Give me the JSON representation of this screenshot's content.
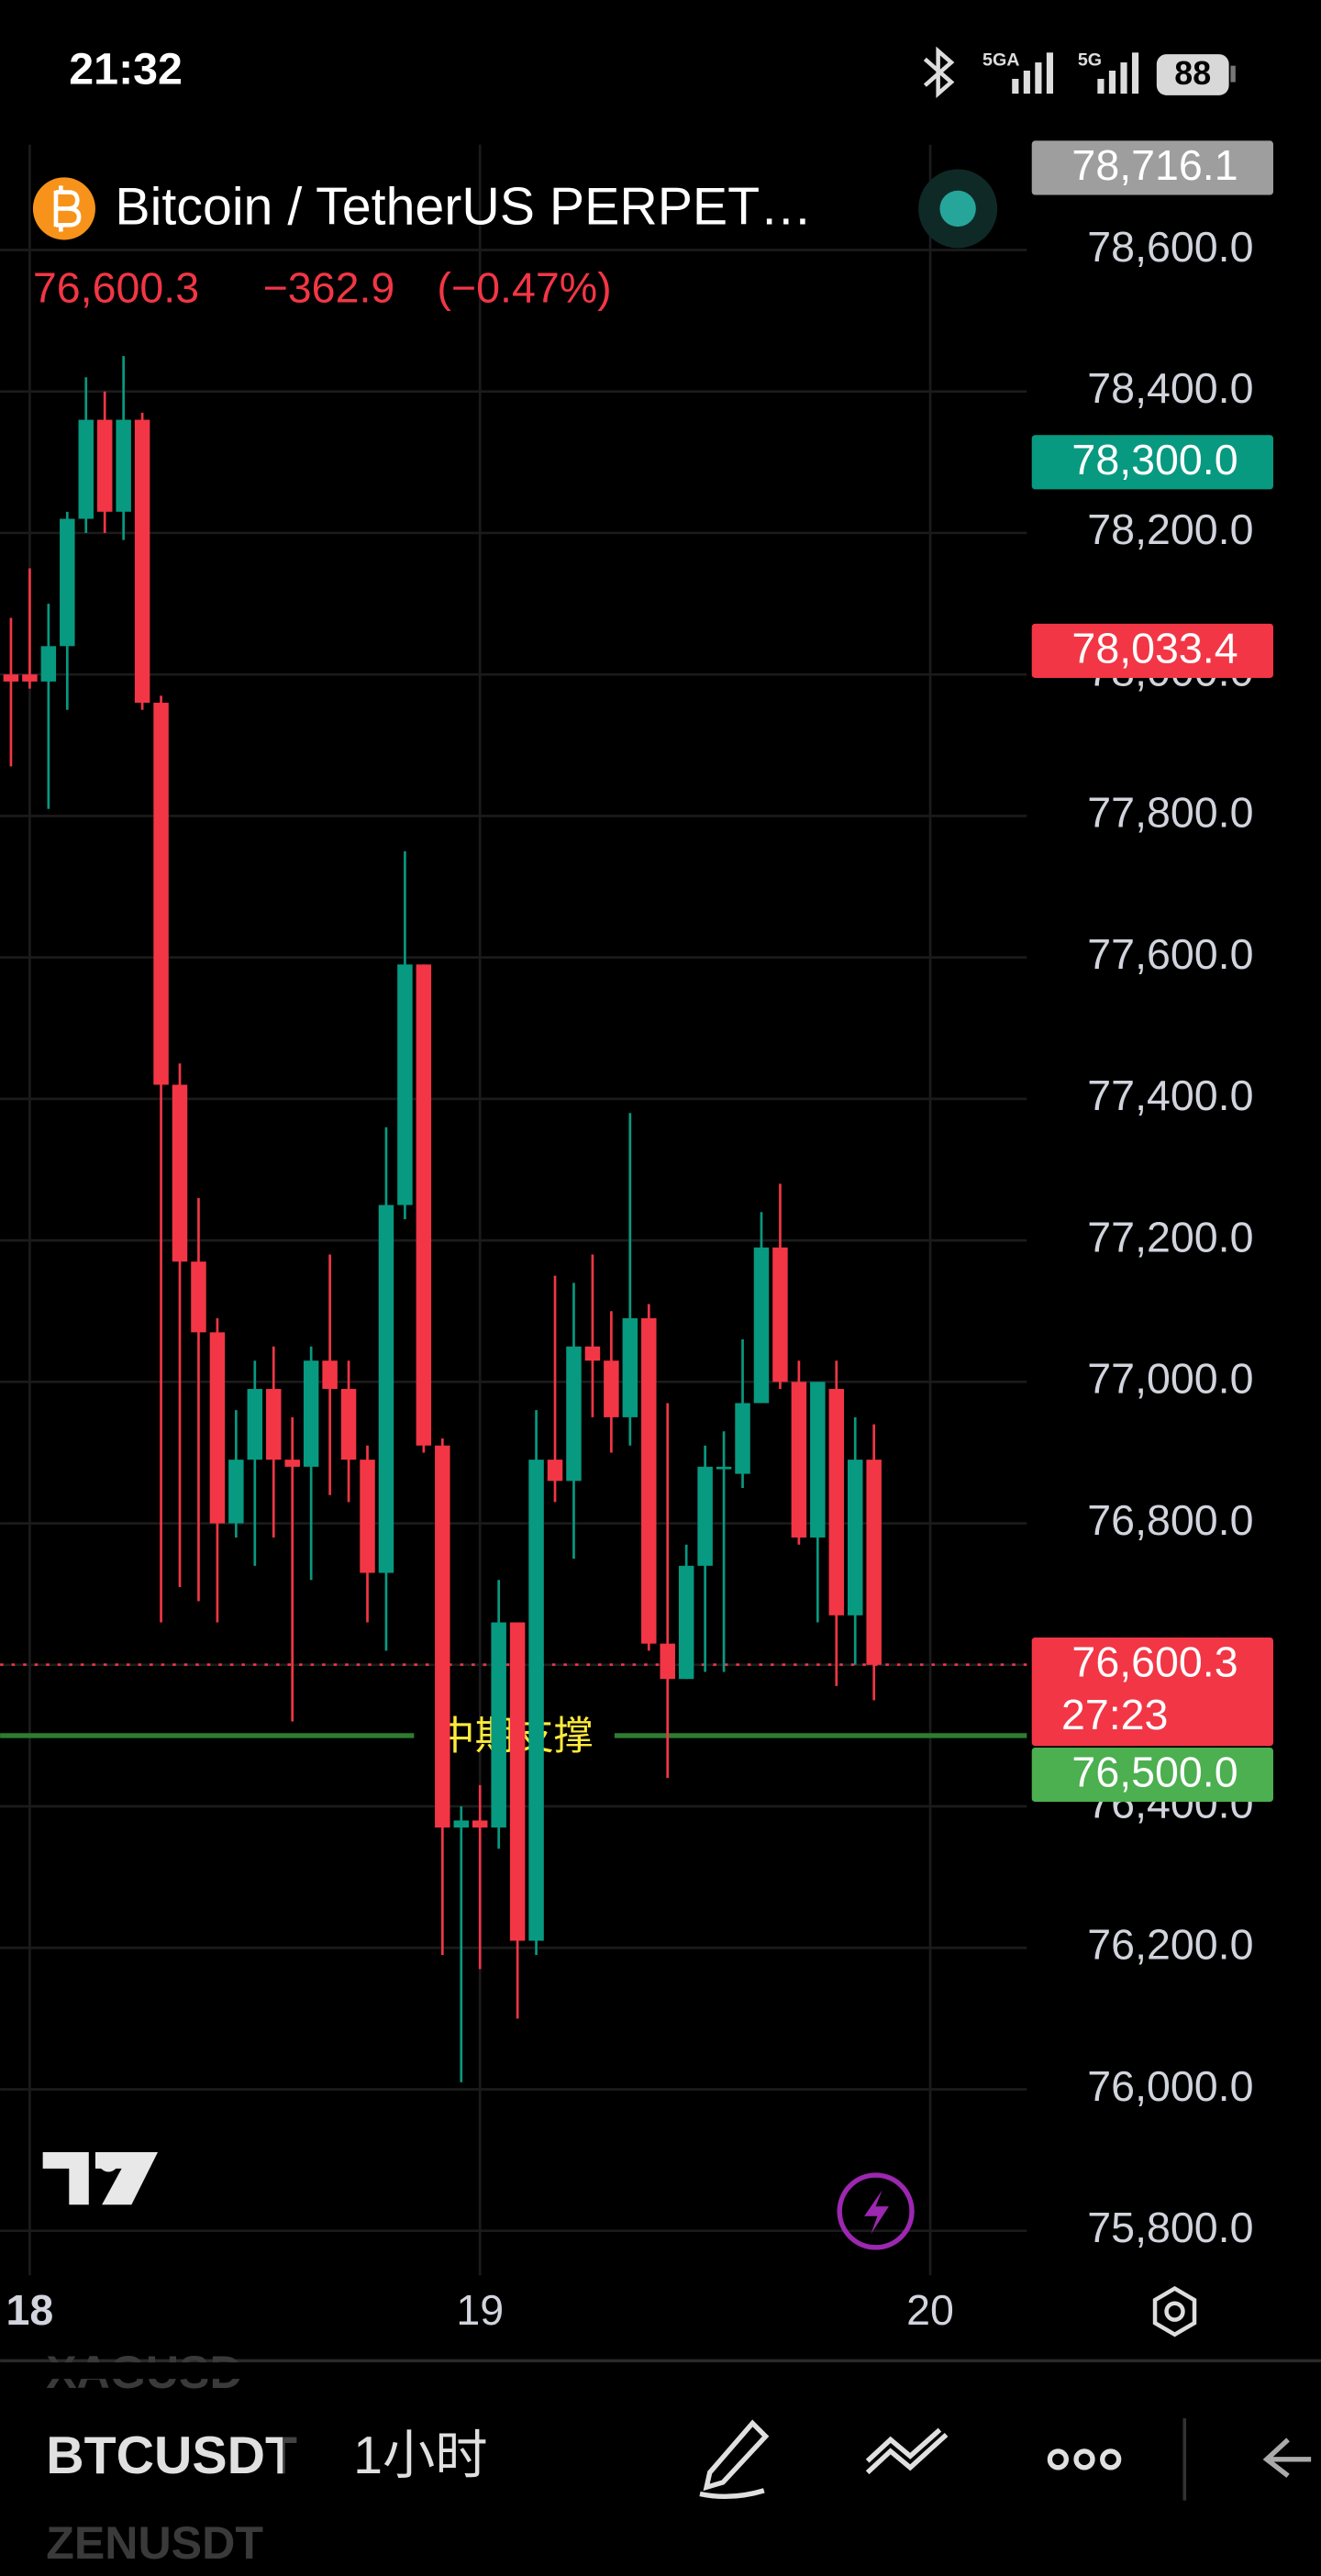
{
  "status_bar": {
    "time": "21:32",
    "net1": "5GA",
    "net2": "5G",
    "battery": "88"
  },
  "header": {
    "symbol": "Bitcoin / TetherUS PERPET…",
    "last": "76,600.3",
    "change": "−362.9",
    "change_pct": "(−0.47%)"
  },
  "chart_data": {
    "type": "candlestick",
    "x": [
      -1,
      0,
      1,
      2,
      3,
      4,
      5,
      6,
      7,
      8,
      9,
      10,
      11,
      12,
      13,
      14,
      15,
      16,
      17,
      18,
      19,
      20,
      21,
      22,
      23,
      24,
      25,
      26,
      27,
      28,
      29,
      30,
      31,
      32,
      33,
      34,
      35,
      36,
      37,
      38,
      39,
      40,
      41,
      42,
      43,
      44,
      45
    ],
    "open": [
      78000,
      78000,
      77990,
      78040,
      78220,
      78360,
      78230,
      78360,
      77960,
      77420,
      77170,
      77070,
      76800,
      76890,
      76990,
      76890,
      76880,
      77030,
      76990,
      76890,
      76730,
      77250,
      77590,
      76910,
      76370,
      76380,
      76370,
      76660,
      76210,
      76890,
      76860,
      77050,
      77030,
      76950,
      77090,
      76630,
      76580,
      76740,
      76880,
      76870,
      76970,
      77190,
      77000,
      76780,
      76990,
      76670,
      76890
    ],
    "high": [
      78080,
      78150,
      78100,
      78230,
      78420,
      78400,
      78450,
      78370,
      77970,
      77450,
      77260,
      77090,
      76960,
      77030,
      77050,
      76950,
      77050,
      77180,
      77030,
      76910,
      77360,
      77750,
      77590,
      76920,
      76400,
      76430,
      76720,
      76660,
      76960,
      77150,
      77140,
      77180,
      77100,
      77380,
      77110,
      76970,
      76770,
      76910,
      76930,
      77060,
      77240,
      77280,
      77030,
      77000,
      77030,
      76950,
      76940
    ],
    "low": [
      77870,
      77980,
      77810,
      77950,
      78200,
      78200,
      78190,
      77950,
      76660,
      76710,
      76690,
      76660,
      76780,
      76740,
      76780,
      76520,
      76720,
      76840,
      76830,
      76660,
      76620,
      77230,
      76900,
      76190,
      76010,
      76170,
      76340,
      76100,
      76190,
      76830,
      76750,
      76950,
      76900,
      76910,
      76620,
      76440,
      76580,
      76590,
      76590,
      76850,
      76970,
      76990,
      76770,
      76660,
      76570,
      76600,
      76550
    ],
    "close": [
      77990,
      77990,
      78040,
      78220,
      78360,
      78230,
      78360,
      77960,
      77420,
      77170,
      77070,
      76800,
      76890,
      76990,
      76890,
      76880,
      77030,
      76990,
      76890,
      76730,
      77250,
      77590,
      76910,
      76370,
      76380,
      76370,
      76660,
      76210,
      76890,
      76860,
      77050,
      77030,
      76950,
      77090,
      76630,
      76580,
      76740,
      76880,
      76880,
      76970,
      77190,
      77000,
      76780,
      77000,
      76670,
      76890,
      76600
    ],
    "up_color": "#089981",
    "down_color": "#f23645",
    "xlim": [
      -1.58,
      53.15
    ],
    "xticks": [
      {
        "value": 0,
        "label": "18"
      },
      {
        "value": 24,
        "label": "19"
      },
      {
        "value": 48,
        "label": "20"
      }
    ],
    "ylim": [
      75737,
      78749
    ],
    "yticks": [
      {
        "value": 75800,
        "label": "75,800.0"
      },
      {
        "value": 76000,
        "label": "76,000.0"
      },
      {
        "value": 76200,
        "label": "76,200.0"
      },
      {
        "value": 76400,
        "label": "76,400.0"
      },
      {
        "value": 76600,
        "label": "76,600.0"
      },
      {
        "value": 76800,
        "label": "76,800.0"
      },
      {
        "value": 77000,
        "label": "77,000.0"
      },
      {
        "value": 77200,
        "label": "77,200.0"
      },
      {
        "value": 77400,
        "label": "77,400.0"
      },
      {
        "value": 77600,
        "label": "77,600.0"
      },
      {
        "value": 77800,
        "label": "77,800.0"
      },
      {
        "value": 78000,
        "label": "78,000.0"
      },
      {
        "value": 78200,
        "label": "78,200.0"
      },
      {
        "value": 78400,
        "label": "78,400.0"
      },
      {
        "value": 78600,
        "label": "78,600.0"
      }
    ],
    "grid": true,
    "price_lines": [
      {
        "value": 78716.1,
        "label": "78,716.1",
        "color": "#9e9e9e"
      },
      {
        "value": 78300,
        "label": "78,300.0",
        "color": "#089981"
      },
      {
        "value": 78033.4,
        "label": "78,033.4",
        "color": "#f23645"
      },
      {
        "value": 76600.3,
        "label": "76,600.3",
        "color": "#f23645",
        "countdown": "27:23",
        "dotted": true
      },
      {
        "value": 76500,
        "label": "76,500.0",
        "color": "#4caf50"
      }
    ],
    "support_line": {
      "value": 76500,
      "label": "中期支撑",
      "color": "#2e7d32",
      "label_color": "#ffeb3b"
    }
  },
  "toolbar": {
    "prev_symbol": "XAGUSD",
    "symbol": "BTCUSDT",
    "interval": "1小时",
    "next_symbol": "ZENUSDT"
  }
}
